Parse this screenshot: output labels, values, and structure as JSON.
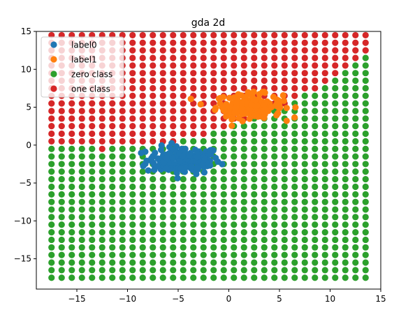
{
  "chart_data": {
    "type": "scatter",
    "title": "gda 2d",
    "xlabel": "",
    "ylabel": "",
    "xlim": [
      -19,
      15
    ],
    "ylim": [
      -19,
      15
    ],
    "xticks": [
      -15,
      -10,
      -5,
      0,
      5,
      10,
      15
    ],
    "yticks": [
      -15,
      -10,
      -5,
      0,
      5,
      10,
      15
    ],
    "grid": false,
    "legend_position": "top-left",
    "grid_field": {
      "x_start": -17.5,
      "x_step": 1.0,
      "x_count": 32,
      "y_start": -17.5,
      "y_step": 1.0,
      "y_count": 33,
      "boundary": {
        "a": 0.016,
        "b": 0.53,
        "c": 2.2,
        "d": -0.2
      },
      "rule": "point is one class if y > a*x^2 + b*x + c - d*x... (visual approximation of decision boundary)"
    },
    "series": [
      {
        "name": "label0",
        "color": "#1f77b4",
        "cluster": {
          "center": [
            -4.5,
            -2.0
          ],
          "spread": [
            3.3,
            1.5
          ],
          "count": 160
        }
      },
      {
        "name": "label1",
        "color": "#ff7f0e",
        "cluster": {
          "center": [
            2.0,
            5.2
          ],
          "spread": [
            3.0,
            1.3
          ],
          "count": 160
        }
      },
      {
        "name": "zero class",
        "color": "#2ca02c"
      },
      {
        "name": "one class",
        "color": "#d62728"
      }
    ]
  }
}
